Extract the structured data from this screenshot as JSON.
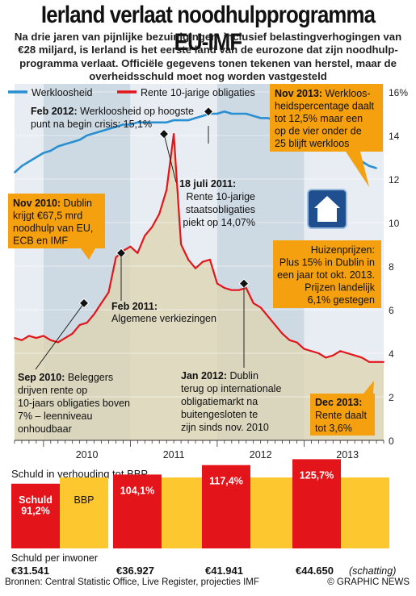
{
  "title": "Ierland verlaat noodhulpprogramma EU-IMF",
  "subtitle_lines": [
    "Na drie jaren van pijnlijke bezuinigingen, inclusief belastingverhogingen van",
    "€28 miljard, is Ierland is het eerste land van de eurozone dat zijn noodhulp-",
    "programma verlaat. Officiële gegevens tonen tekenen van herstel, maar de",
    "overheidsschuld moet nog worden vastgesteld"
  ],
  "legend": {
    "unemployment": "Werkloosheid",
    "bond_rate": "Rente 10-jarige obligaties"
  },
  "colors": {
    "unemployment": "#2a8fd1",
    "bond_rate": "#e3151b",
    "callout": "#f5a00f",
    "bbp": "#fdc82f",
    "debt": "#e3151b",
    "band_dark": "#cdd9e3",
    "band_light": "#e7edf2",
    "area": "#ded3b0"
  },
  "chart_data": [
    {
      "type": "line",
      "x_labels": [
        "2010",
        "2011",
        "2012",
        "2013"
      ],
      "x_range": [
        "2009-09",
        "2013-12"
      ],
      "ylim": [
        0,
        16
      ],
      "yticks": [
        "0",
        "2",
        "4",
        "6",
        "8",
        "10",
        "12",
        "14",
        "16%"
      ],
      "series": [
        {
          "name": "Werkloosheid",
          "unit": "%",
          "points": [
            [
              "2009-09",
              12.3
            ],
            [
              "2009-10",
              12.6
            ],
            [
              "2009-11",
              12.8
            ],
            [
              "2009-12",
              13.0
            ],
            [
              "2010-01",
              13.2
            ],
            [
              "2010-02",
              13.3
            ],
            [
              "2010-03",
              13.5
            ],
            [
              "2010-04",
              13.6
            ],
            [
              "2010-05",
              13.7
            ],
            [
              "2010-06",
              13.8
            ],
            [
              "2010-07",
              14.0
            ],
            [
              "2010-08",
              14.1
            ],
            [
              "2010-09",
              14.2
            ],
            [
              "2010-10",
              14.3
            ],
            [
              "2010-11",
              14.4
            ],
            [
              "2010-12",
              14.5
            ],
            [
              "2011-01",
              14.5
            ],
            [
              "2011-02",
              14.6
            ],
            [
              "2011-03",
              14.6
            ],
            [
              "2011-04",
              14.6
            ],
            [
              "2011-05",
              14.6
            ],
            [
              "2011-06",
              14.6
            ],
            [
              "2011-07",
              14.7
            ],
            [
              "2011-08",
              14.7
            ],
            [
              "2011-09",
              14.7
            ],
            [
              "2011-10",
              14.8
            ],
            [
              "2011-11",
              14.9
            ],
            [
              "2011-12",
              15.0
            ],
            [
              "2012-01",
              15.0
            ],
            [
              "2012-02",
              15.1
            ],
            [
              "2012-03",
              15.0
            ],
            [
              "2012-04",
              15.0
            ],
            [
              "2012-05",
              15.0
            ],
            [
              "2012-06",
              14.9
            ],
            [
              "2012-07",
              14.8
            ],
            [
              "2012-08",
              14.8
            ],
            [
              "2012-09",
              14.7
            ],
            [
              "2012-10",
              14.6
            ],
            [
              "2012-11",
              14.5
            ],
            [
              "2012-12",
              14.3
            ],
            [
              "2013-01",
              14.2
            ],
            [
              "2013-02",
              14.0
            ],
            [
              "2013-03",
              13.9
            ],
            [
              "2013-04",
              13.7
            ],
            [
              "2013-05",
              13.6
            ],
            [
              "2013-06",
              13.5
            ],
            [
              "2013-07",
              13.3
            ],
            [
              "2013-08",
              13.0
            ],
            [
              "2013-09",
              12.8
            ],
            [
              "2013-10",
              12.6
            ],
            [
              "2013-11",
              12.5
            ]
          ]
        },
        {
          "name": "Rente 10-jarige obligaties",
          "unit": "%",
          "points": [
            [
              "2009-09",
              4.7
            ],
            [
              "2009-10",
              4.6
            ],
            [
              "2009-11",
              4.8
            ],
            [
              "2009-12",
              4.7
            ],
            [
              "2010-01",
              4.8
            ],
            [
              "2010-02",
              4.6
            ],
            [
              "2010-03",
              4.5
            ],
            [
              "2010-04",
              4.7
            ],
            [
              "2010-05",
              4.9
            ],
            [
              "2010-06",
              5.3
            ],
            [
              "2010-07",
              5.4
            ],
            [
              "2010-08",
              5.8
            ],
            [
              "2010-09",
              6.3
            ],
            [
              "2010-10",
              6.8
            ],
            [
              "2010-11",
              8.4
            ],
            [
              "2010-12",
              8.7
            ],
            [
              "2011-01",
              8.9
            ],
            [
              "2011-02",
              8.6
            ],
            [
              "2011-03",
              9.4
            ],
            [
              "2011-04",
              9.8
            ],
            [
              "2011-05",
              10.4
            ],
            [
              "2011-06",
              11.5
            ],
            [
              "2011-07",
              14.07
            ],
            [
              "2011-08",
              9.0
            ],
            [
              "2011-09",
              8.3
            ],
            [
              "2011-10",
              7.9
            ],
            [
              "2011-11",
              8.2
            ],
            [
              "2011-12",
              8.3
            ],
            [
              "2012-01",
              7.2
            ],
            [
              "2012-02",
              7.0
            ],
            [
              "2012-03",
              6.9
            ],
            [
              "2012-04",
              6.9
            ],
            [
              "2012-05",
              7.0
            ],
            [
              "2012-06",
              6.3
            ],
            [
              "2012-07",
              6.1
            ],
            [
              "2012-08",
              5.7
            ],
            [
              "2012-09",
              5.3
            ],
            [
              "2012-10",
              4.9
            ],
            [
              "2012-11",
              4.6
            ],
            [
              "2012-12",
              4.5
            ],
            [
              "2013-01",
              4.2
            ],
            [
              "2013-02",
              4.1
            ],
            [
              "2013-03",
              4.0
            ],
            [
              "2013-04",
              3.8
            ],
            [
              "2013-05",
              3.9
            ],
            [
              "2013-06",
              4.1
            ],
            [
              "2013-07",
              4.0
            ],
            [
              "2013-08",
              3.9
            ],
            [
              "2013-09",
              3.8
            ],
            [
              "2013-10",
              3.6
            ],
            [
              "2013-11",
              3.6
            ],
            [
              "2013-12",
              3.6
            ]
          ]
        }
      ]
    },
    {
      "type": "bar",
      "title": "Schuld in verhouding tot BBP",
      "legend": [
        "Schuld",
        "BBP"
      ],
      "categories": [
        "2010",
        "2011",
        "2012",
        "2013"
      ],
      "debt_pct": [
        91.2,
        104.1,
        117.4,
        125.7
      ],
      "debt_labels": [
        "91,2%",
        "104,1%",
        "117,4%",
        "125,7%"
      ],
      "bbp_pct": 100,
      "per_capita_label": "Schuld per inwoner",
      "per_capita": [
        "€31.541",
        "€36.927",
        "€41.941",
        "€44.650"
      ],
      "estimate_note": "(schatting)"
    }
  ],
  "callouts": {
    "feb2012": [
      "Feb 2012: Werkloosheid op hoogste",
      "punt na begin crisis: 15,1%"
    ],
    "nov2013": [
      "Nov 2013: Werkloos-",
      "heidspercentage daalt",
      "tot 12,5% maar een",
      "op de vier onder de",
      "25 blijft werkloos"
    ],
    "jul2011": [
      "18 juli 2011:",
      "Rente 10-jarige",
      "staatsobligaties",
      "piekt op 14,07%"
    ],
    "nov2010": [
      "Nov 2010: Dublin",
      "krijgt €67,5 mrd",
      "noodhulp van EU,",
      "ECB en IMF"
    ],
    "housing": [
      "Huizenprijzen:",
      "Plus 15% in Dublin in",
      "een jaar tot okt. 2013.",
      "Prijzen landelijk",
      "6,1% gestegen"
    ],
    "feb2011": [
      "Feb 2011:",
      "Algemene verkiezingen"
    ],
    "sep2010": [
      "Sep 2010: Beleggers",
      "drijven rente op",
      "10-jaars obligaties boven",
      "7% – leenniveau",
      "onhoudbaar"
    ],
    "jan2012": [
      "Jan 2012: Dublin",
      "terug op internationale",
      "obligatiemarkt na",
      "buitengesloten te",
      "zijn sinds nov. 2010"
    ],
    "dec2013": [
      "Dec 2013:",
      "Rente daalt",
      "tot 3,6%"
    ]
  },
  "footer": {
    "source": "Bronnen: Central Statistic Office, Live Register, projecties IMF",
    "credit": "© GRAPHIC NEWS"
  }
}
